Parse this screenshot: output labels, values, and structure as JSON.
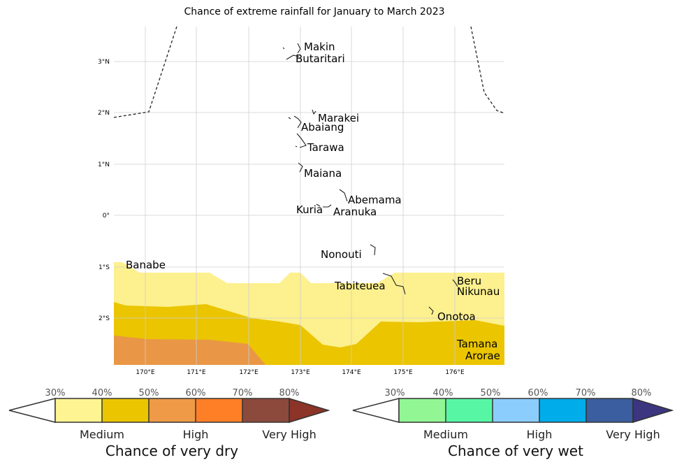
{
  "title": "Chance of extreme rainfall for January to March 2023",
  "map": {
    "lon_ticks": [
      "170°E",
      "171°E",
      "172°E",
      "173°E",
      "174°E",
      "175°E",
      "176°E"
    ],
    "lat_ticks": [
      "3°N",
      "2°N",
      "1°N",
      "0°",
      "1°S",
      "2°S"
    ],
    "places": [
      {
        "name": "Makin"
      },
      {
        "name": "Butaritari"
      },
      {
        "name": "Marakei"
      },
      {
        "name": "Abaiang"
      },
      {
        "name": "Tarawa"
      },
      {
        "name": "Maiana"
      },
      {
        "name": "Abemama"
      },
      {
        "name": "Kuria"
      },
      {
        "name": "Aranuka"
      },
      {
        "name": "Nonouti"
      },
      {
        "name": "Banabe"
      },
      {
        "name": "Tabiteuea"
      },
      {
        "name": "Beru"
      },
      {
        "name": "Nikunau"
      },
      {
        "name": "Onotoa"
      },
      {
        "name": "Tamana"
      },
      {
        "name": "Arorae"
      }
    ],
    "zones": [
      {
        "level": "Medium",
        "color": "#fdf08e"
      },
      {
        "level": "Medium",
        "color": "#ebc500"
      },
      {
        "level": "High",
        "color": "#e99746"
      }
    ]
  },
  "legend_dry": {
    "ticks": [
      "30%",
      "40%",
      "50%",
      "60%",
      "70%",
      "80%"
    ],
    "colors": [
      "#ffffff",
      "#fef592",
      "#ebc500",
      "#ee9a47",
      "#fe7f26",
      "#8b4a3c",
      "#8b3427"
    ],
    "levels": [
      "Medium",
      "High",
      "Very High"
    ],
    "title": "Chance of very dry"
  },
  "legend_wet": {
    "ticks": [
      "30%",
      "40%",
      "50%",
      "60%",
      "70%",
      "80%"
    ],
    "colors": [
      "#ffffff",
      "#91f693",
      "#56f6a5",
      "#8bcdfd",
      "#00acea",
      "#3a5e9f",
      "#3c3580"
    ],
    "levels": [
      "Medium",
      "High",
      "Very High"
    ],
    "title": "Chance of very wet"
  }
}
